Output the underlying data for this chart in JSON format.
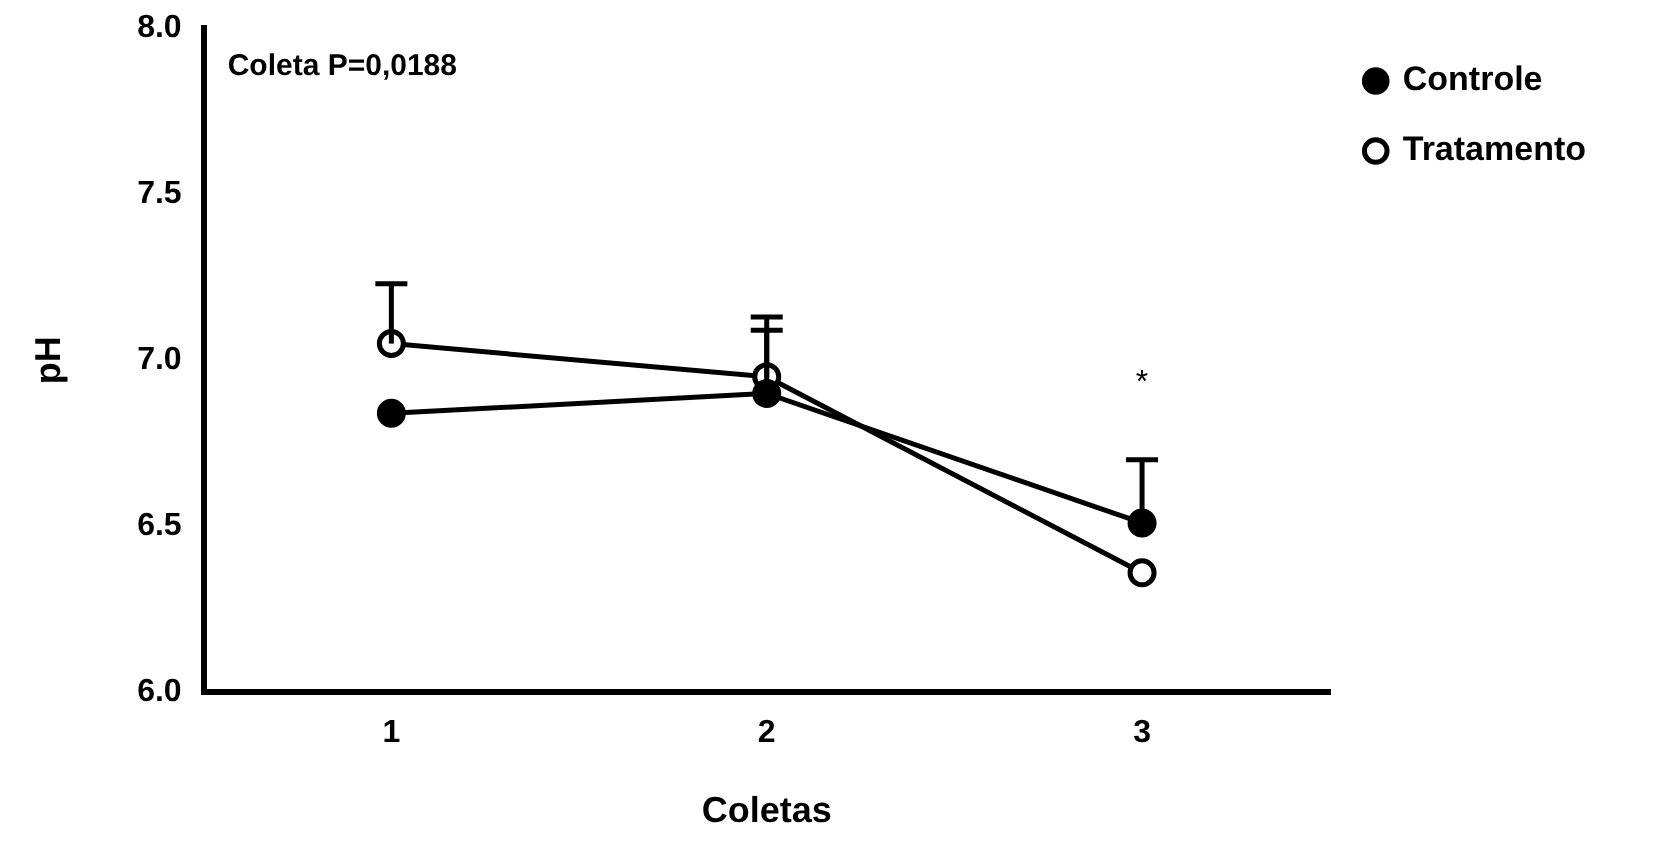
{
  "chart_data": {
    "type": "line",
    "xlabel": "Coletas",
    "ylabel": "pH",
    "categories": [
      "1",
      "2",
      "3"
    ],
    "series": [
      {
        "name": "Controle",
        "color": "#000000",
        "values": [
          6.84,
          6.9,
          6.51
        ],
        "errors": [
          null,
          [
            6.9,
            7.09
          ],
          [
            6.51,
            6.7
          ]
        ],
        "marker": "circle"
      },
      {
        "name": "Tratamento",
        "color": "#000000",
        "values": [
          7.05,
          6.95,
          6.36
        ],
        "errors": [
          [
            7.05,
            7.23
          ],
          [
            6.95,
            7.13
          ],
          null
        ],
        "marker": "circle"
      }
    ],
    "ylim": [
      6,
      8
    ],
    "yticks": [
      {
        "value": 6,
        "label": "6.0"
      },
      {
        "value": 6.5,
        "label": "6.5"
      },
      {
        "value": 7,
        "label": "7.0"
      },
      {
        "value": 7.5,
        "label": "7.5"
      },
      {
        "value": 8,
        "label": "8.0"
      }
    ],
    "grid": false,
    "legend": "top right",
    "annotations": [
      "Coleta P=0,0188",
      "*"
    ]
  }
}
